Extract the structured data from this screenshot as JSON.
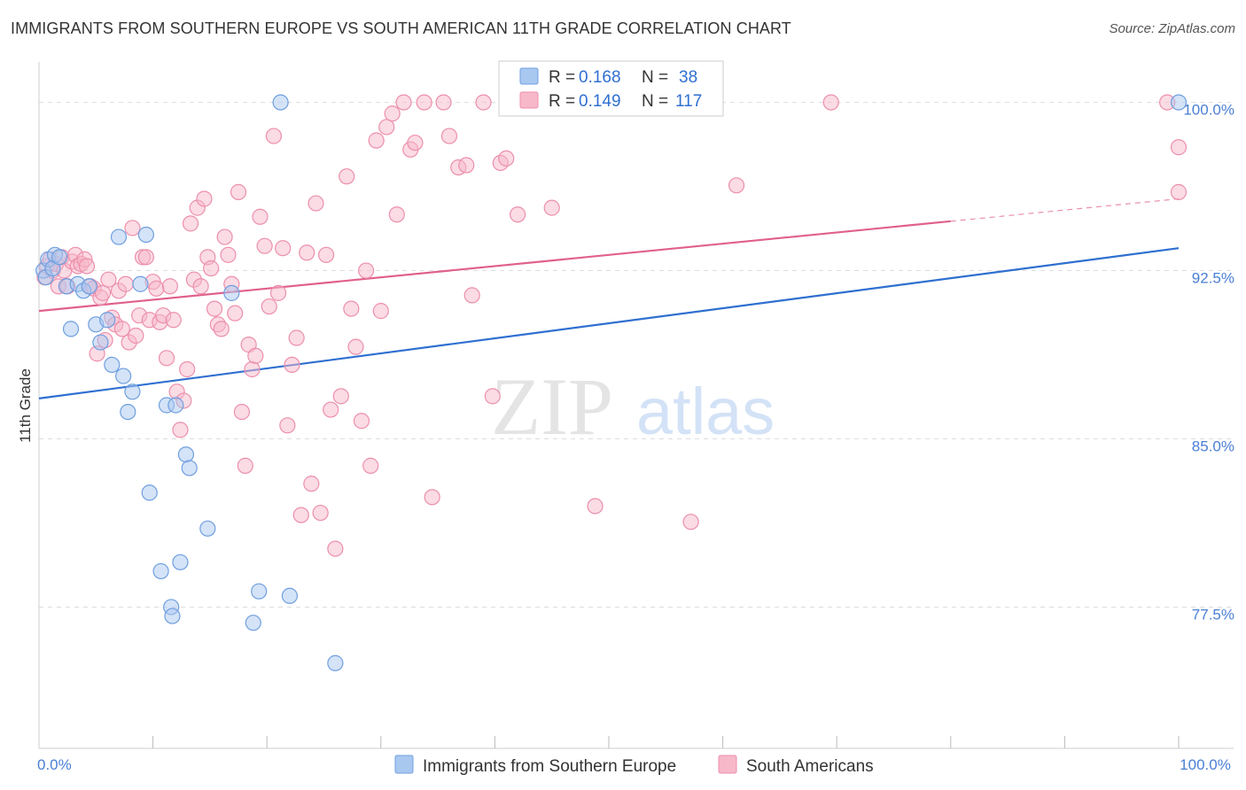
{
  "title": "IMMIGRANTS FROM SOUTHERN EUROPE VS SOUTH AMERICAN 11TH GRADE CORRELATION CHART",
  "source": "Source: ZipAtlas.com",
  "watermark": {
    "zip": "ZIP",
    "atlas": "atlas"
  },
  "colors": {
    "blue_fill": "#a9c8f0",
    "blue_stroke": "#6f9fe0",
    "blue_line": "#2f6fd0",
    "pink_fill": "#f7b8ca",
    "pink_stroke": "#ec8fac",
    "pink_line": "#e0608c",
    "axis_text": "#4a7fd4",
    "grid": "#dddddd"
  },
  "chart_data": {
    "type": "scatter",
    "title": "IMMIGRANTS FROM SOUTHERN EUROPE VS SOUTH AMERICAN 11TH GRADE CORRELATION CHART",
    "xlabel": "",
    "ylabel": "11th Grade",
    "xlim": [
      0,
      100
    ],
    "ylim": [
      71.2,
      101.8
    ],
    "x_tick_labels": [
      {
        "value": 0,
        "label": "0.0%"
      },
      {
        "value": 100,
        "label": "100.0%"
      }
    ],
    "y_tick_labels": [
      {
        "value": 100,
        "label": "100.0%"
      },
      {
        "value": 92.5,
        "label": "92.5%"
      },
      {
        "value": 85,
        "label": "85.0%"
      },
      {
        "value": 77.5,
        "label": "77.5%"
      }
    ],
    "legend_stats": [
      {
        "r_label": "R = ",
        "r": "0.168",
        "n_label": "N = ",
        "n": "38"
      },
      {
        "r_label": "R = ",
        "r": "0.149",
        "n_label": "N = ",
        "n": "117"
      }
    ],
    "series": [
      {
        "name": "Immigrants from Southern Europe",
        "trend": {
          "x0": 0,
          "y0": 86.8,
          "x1": 100,
          "y1": 93.5
        },
        "points": [
          [
            0.4,
            92.5
          ],
          [
            0.6,
            92.2
          ],
          [
            0.8,
            93.0
          ],
          [
            1.2,
            92.6
          ],
          [
            1.4,
            93.2
          ],
          [
            1.8,
            93.1
          ],
          [
            2.4,
            91.8
          ],
          [
            2.8,
            89.9
          ],
          [
            3.4,
            91.9
          ],
          [
            3.9,
            91.6
          ],
          [
            4.4,
            91.8
          ],
          [
            5.0,
            90.1
          ],
          [
            5.4,
            89.3
          ],
          [
            6.0,
            90.3
          ],
          [
            6.4,
            88.3
          ],
          [
            7.0,
            94.0
          ],
          [
            7.4,
            87.8
          ],
          [
            7.8,
            86.2
          ],
          [
            8.2,
            87.1
          ],
          [
            8.9,
            91.9
          ],
          [
            9.4,
            94.1
          ],
          [
            9.7,
            82.6
          ],
          [
            10.7,
            79.1
          ],
          [
            11.2,
            86.5
          ],
          [
            11.6,
            77.5
          ],
          [
            11.7,
            77.1
          ],
          [
            12.0,
            86.5
          ],
          [
            12.4,
            79.5
          ],
          [
            12.9,
            84.3
          ],
          [
            13.2,
            83.7
          ],
          [
            14.8,
            81.0
          ],
          [
            16.9,
            91.5
          ],
          [
            18.8,
            76.8
          ],
          [
            19.3,
            78.2
          ],
          [
            21.2,
            100.0
          ],
          [
            22.0,
            78.0
          ],
          [
            26.0,
            75.0
          ],
          [
            100.0,
            100.0
          ]
        ]
      },
      {
        "name": "South Americans",
        "trend": {
          "x0": 0,
          "y0": 90.7,
          "x1": 80,
          "y1": 94.7
        },
        "trend_dashed": {
          "x0": 80,
          "y0": 94.7,
          "x1": 100,
          "y1": 95.7
        },
        "points": [
          [
            0.5,
            92.2
          ],
          [
            0.7,
            92.7
          ],
          [
            1.0,
            93.0
          ],
          [
            1.2,
            92.5
          ],
          [
            1.5,
            92.8
          ],
          [
            1.7,
            91.8
          ],
          [
            2.0,
            93.1
          ],
          [
            2.2,
            92.5
          ],
          [
            2.5,
            91.8
          ],
          [
            2.9,
            92.9
          ],
          [
            3.2,
            93.2
          ],
          [
            3.4,
            92.7
          ],
          [
            3.7,
            92.8
          ],
          [
            4.0,
            93.0
          ],
          [
            4.2,
            92.7
          ],
          [
            4.5,
            91.8
          ],
          [
            4.8,
            91.7
          ],
          [
            5.1,
            88.8
          ],
          [
            5.4,
            91.3
          ],
          [
            5.6,
            91.5
          ],
          [
            5.8,
            89.4
          ],
          [
            6.1,
            92.1
          ],
          [
            6.4,
            90.4
          ],
          [
            6.7,
            90.1
          ],
          [
            7.0,
            91.6
          ],
          [
            7.3,
            89.9
          ],
          [
            7.6,
            91.9
          ],
          [
            7.9,
            89.3
          ],
          [
            8.2,
            94.4
          ],
          [
            8.5,
            89.6
          ],
          [
            8.8,
            90.5
          ],
          [
            9.1,
            93.1
          ],
          [
            9.4,
            93.1
          ],
          [
            9.7,
            90.3
          ],
          [
            10.0,
            92.0
          ],
          [
            10.3,
            91.7
          ],
          [
            10.6,
            90.2
          ],
          [
            10.9,
            90.5
          ],
          [
            11.2,
            88.6
          ],
          [
            11.5,
            91.8
          ],
          [
            11.8,
            90.3
          ],
          [
            12.1,
            87.1
          ],
          [
            12.4,
            85.4
          ],
          [
            12.7,
            86.7
          ],
          [
            13.0,
            88.1
          ],
          [
            13.3,
            94.6
          ],
          [
            13.6,
            92.1
          ],
          [
            13.9,
            95.3
          ],
          [
            14.2,
            91.8
          ],
          [
            14.5,
            95.7
          ],
          [
            14.8,
            93.1
          ],
          [
            15.1,
            92.6
          ],
          [
            15.4,
            90.8
          ],
          [
            15.7,
            90.1
          ],
          [
            16.0,
            89.9
          ],
          [
            16.3,
            94.0
          ],
          [
            16.6,
            93.2
          ],
          [
            16.9,
            91.9
          ],
          [
            17.2,
            90.6
          ],
          [
            17.5,
            96.0
          ],
          [
            17.8,
            86.2
          ],
          [
            18.1,
            83.8
          ],
          [
            18.4,
            89.2
          ],
          [
            18.7,
            88.1
          ],
          [
            19.0,
            88.7
          ],
          [
            19.4,
            94.9
          ],
          [
            19.8,
            93.6
          ],
          [
            20.2,
            90.9
          ],
          [
            20.6,
            98.5
          ],
          [
            21.0,
            91.5
          ],
          [
            21.4,
            93.5
          ],
          [
            21.8,
            85.6
          ],
          [
            22.2,
            88.3
          ],
          [
            22.6,
            89.5
          ],
          [
            23.0,
            81.6
          ],
          [
            23.5,
            93.3
          ],
          [
            23.9,
            83.0
          ],
          [
            24.3,
            95.5
          ],
          [
            24.7,
            81.7
          ],
          [
            25.2,
            93.2
          ],
          [
            25.6,
            86.3
          ],
          [
            26.0,
            80.1
          ],
          [
            26.5,
            86.9
          ],
          [
            27.0,
            96.7
          ],
          [
            27.4,
            90.8
          ],
          [
            27.8,
            89.1
          ],
          [
            28.3,
            85.8
          ],
          [
            28.7,
            92.5
          ],
          [
            29.1,
            83.8
          ],
          [
            29.6,
            98.3
          ],
          [
            30.0,
            90.7
          ],
          [
            30.5,
            98.9
          ],
          [
            31.0,
            99.5
          ],
          [
            31.4,
            95.0
          ],
          [
            32.0,
            100.0
          ],
          [
            32.6,
            97.9
          ],
          [
            33.0,
            98.2
          ],
          [
            33.8,
            100.0
          ],
          [
            34.5,
            82.4
          ],
          [
            35.5,
            100.0
          ],
          [
            36.0,
            98.5
          ],
          [
            36.8,
            97.1
          ],
          [
            37.5,
            97.2
          ],
          [
            38.0,
            91.4
          ],
          [
            39.0,
            100.0
          ],
          [
            39.8,
            86.9
          ],
          [
            40.5,
            97.3
          ],
          [
            41.0,
            97.5
          ],
          [
            42.0,
            95.0
          ],
          [
            45.0,
            95.3
          ],
          [
            48.8,
            82.0
          ],
          [
            57.2,
            81.3
          ],
          [
            61.2,
            96.3
          ],
          [
            69.5,
            100.0
          ],
          [
            99.0,
            100.0
          ],
          [
            100.0,
            96.0
          ],
          [
            100.0,
            98.0
          ]
        ]
      }
    ]
  }
}
